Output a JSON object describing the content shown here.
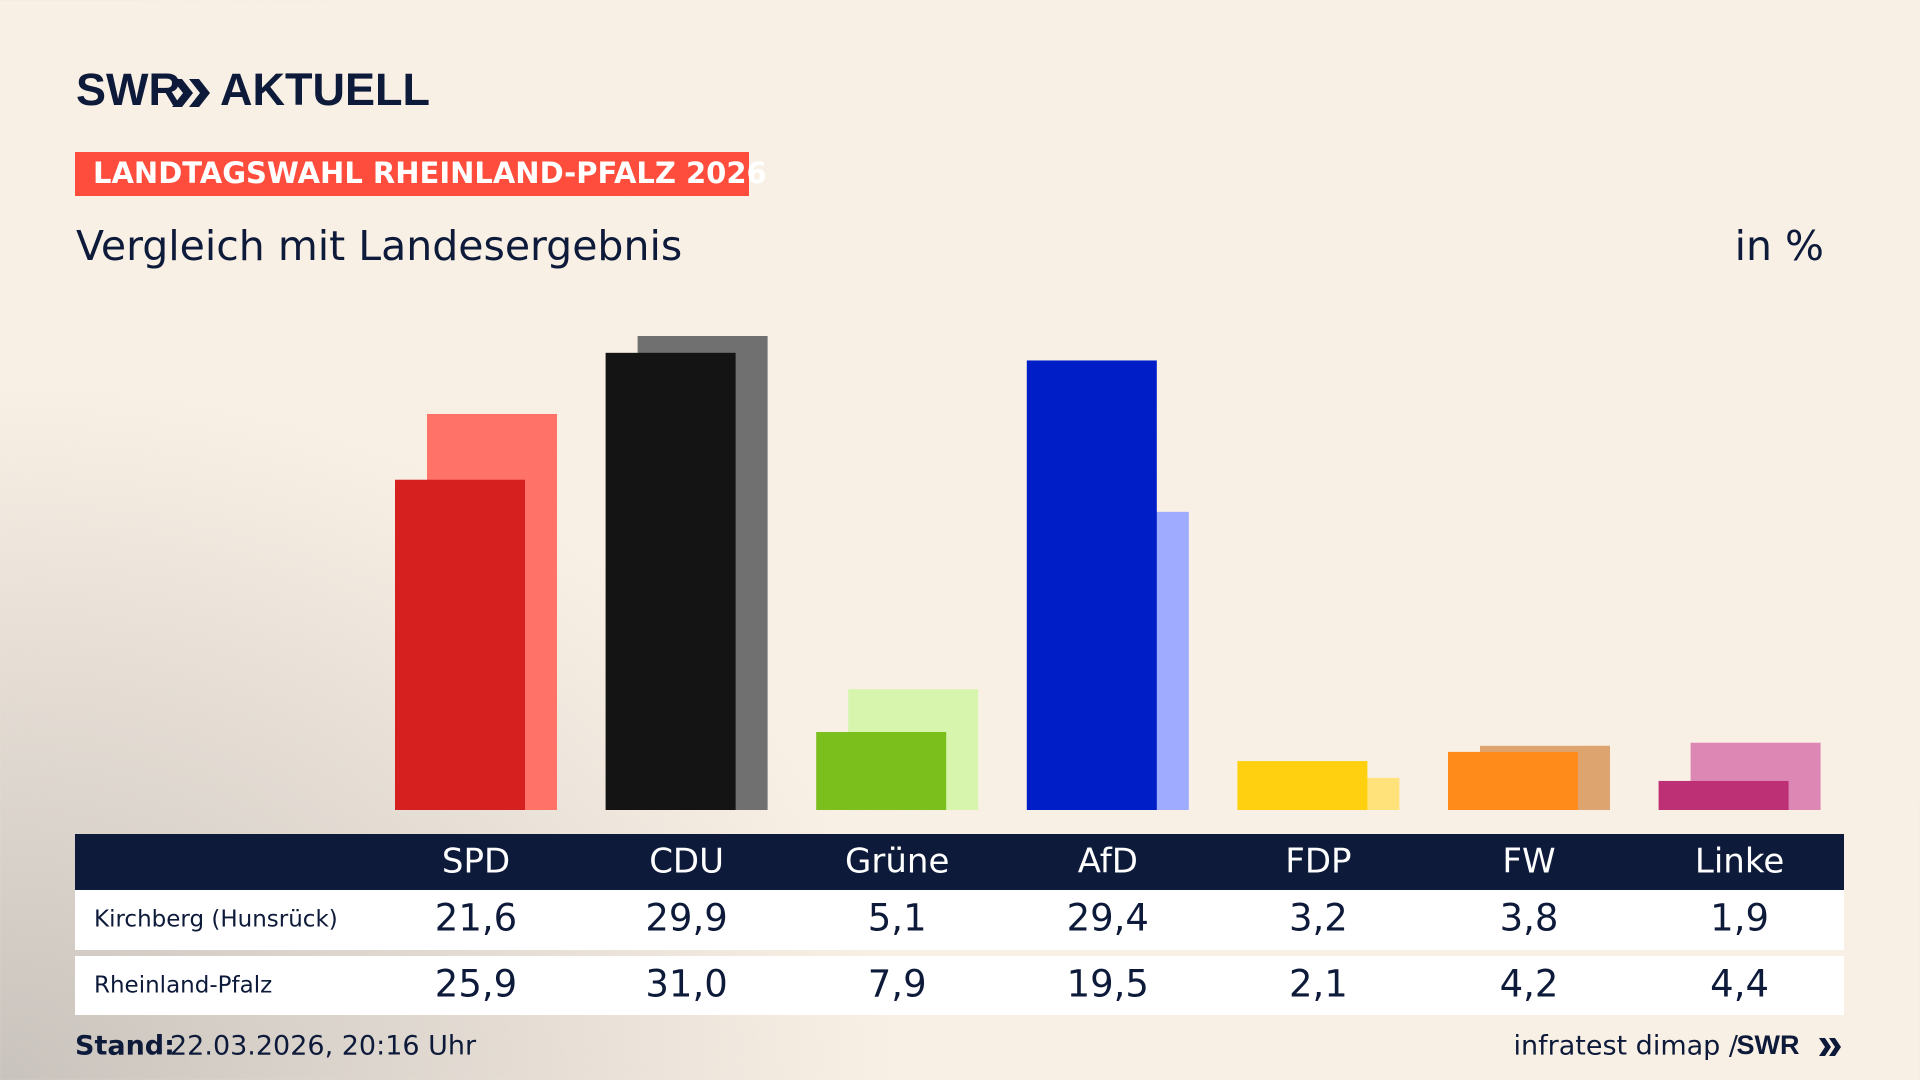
{
  "logo": {
    "brand": "SWR",
    "name": "AKTUELL"
  },
  "badge": "LANDTAGSWAHL RHEINLAND-PFALZ 2026",
  "chart_data": {
    "type": "bar",
    "title": "Vergleich mit Landesergebnis",
    "unit": "in %",
    "categories": [
      "SPD",
      "CDU",
      "Grüne",
      "AfD",
      "FDP",
      "FW",
      "Linke"
    ],
    "series": [
      {
        "name": "Kirchberg (Hunsrück)",
        "values": [
          21.6,
          29.9,
          5.1,
          29.4,
          3.2,
          3.8,
          1.9
        ],
        "value_labels": [
          "21,6",
          "29,9",
          "5,1",
          "29,4",
          "3,2",
          "3,8",
          "1,9"
        ],
        "colors": [
          "#d62020",
          "#141414",
          "#7abf1c",
          "#001ec8",
          "#ffd010",
          "#ff8c1a",
          "#be3075"
        ]
      },
      {
        "name": "Rheinland-Pfalz",
        "values": [
          25.9,
          31.0,
          7.9,
          19.5,
          2.1,
          4.2,
          4.4
        ],
        "value_labels": [
          "25,9",
          "31,0",
          "7,9",
          "19,5",
          "2,1",
          "4,2",
          "4,4"
        ],
        "colors": [
          "#ff7268",
          "#707070",
          "#d7f5ad",
          "#9eabff",
          "#ffe27a",
          "#dda470",
          "#dd88b4"
        ]
      }
    ]
  },
  "footer": {
    "stand_label": "Stand:",
    "stand_value": "22.03.2026, 20:16 Uhr",
    "source": "infratest dimap /",
    "brand": "SWR"
  }
}
